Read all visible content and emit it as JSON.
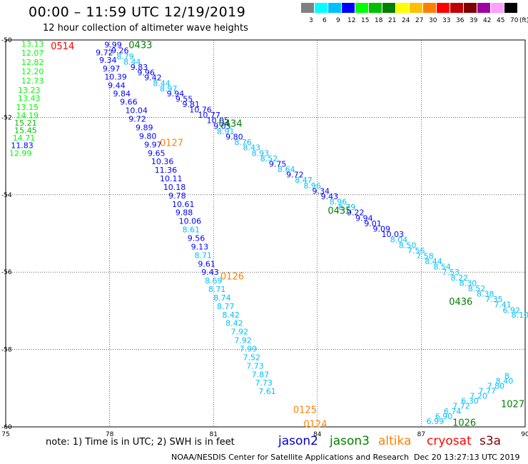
{
  "title": "00:00 – 11:59 UTC 12/19/2019",
  "subtitle": "12 hour collection of altimeter wave heights",
  "color_scale": {
    "labels": [
      "3",
      "6",
      "9",
      "12",
      "15",
      "18",
      "21",
      "24",
      "27",
      "30",
      "33",
      "36",
      "39",
      "42",
      "45",
      "70",
      "(ft)"
    ],
    "colors": [
      "#808080",
      "#00ffff",
      "#00c0ff",
      "#0000ff",
      "#00ff00",
      "#00c000",
      "#008000",
      "#ffff00",
      "#ffc000",
      "#ff8000",
      "#ff0000",
      "#c00000",
      "#800000",
      "#a000a0",
      "#ffa0ff",
      "#000000"
    ]
  },
  "chart_data": {
    "type": "scatter",
    "x_axis": {
      "ticks": [
        "75",
        "78",
        "81",
        "84",
        "87",
        "90"
      ],
      "range": [
        75,
        90
      ]
    },
    "y_axis": {
      "ticks": [
        "-50",
        "-52",
        "-54",
        "-56",
        "-58",
        "-60"
      ],
      "range": [
        -60,
        -50
      ]
    },
    "grid": true,
    "pass_labels": [
      {
        "label": "0514",
        "lon": 76.3,
        "lat": -50.15,
        "color": "#ff0000"
      },
      {
        "label": "0433",
        "lon": 78.55,
        "lat": -50.12,
        "color": "#008000"
      },
      {
        "label": "0434",
        "lon": 81.15,
        "lat": -52.15,
        "color": "#008000"
      },
      {
        "label": "0127",
        "lon": 79.45,
        "lat": -52.65,
        "color": "#ff8000"
      },
      {
        "label": "0435",
        "lon": 84.3,
        "lat": -54.4,
        "color": "#008000"
      },
      {
        "label": "0126",
        "lon": 81.2,
        "lat": -56.1,
        "color": "#ff8000"
      },
      {
        "label": "0436",
        "lon": 87.8,
        "lat": -56.75,
        "color": "#008000"
      },
      {
        "label": "1027",
        "lon": 89.3,
        "lat": -59.4,
        "color": "#008000"
      },
      {
        "label": "0125",
        "lon": 83.3,
        "lat": -59.55,
        "color": "#ff8000"
      },
      {
        "label": "1026",
        "lon": 87.9,
        "lat": -59.88,
        "color": "#008000"
      },
      {
        "label": "0124",
        "lon": 83.6,
        "lat": -59.92,
        "color": "#ff8000"
      }
    ],
    "points": [
      {
        "v": "13.13",
        "lon": 75.45,
        "lat": -50.1,
        "c": "#00ff00"
      },
      {
        "v": "12.07",
        "lon": 75.45,
        "lat": -50.33,
        "c": "#00ff00"
      },
      {
        "v": "12.82",
        "lon": 75.45,
        "lat": -50.57,
        "c": "#00ff00"
      },
      {
        "v": "12.20",
        "lon": 75.45,
        "lat": -50.81,
        "c": "#00ff00"
      },
      {
        "v": "12.73",
        "lon": 75.45,
        "lat": -51.05,
        "c": "#00ff00"
      },
      {
        "v": "13.23",
        "lon": 75.35,
        "lat": -51.29,
        "c": "#00ff00"
      },
      {
        "v": "13.43",
        "lon": 75.35,
        "lat": -51.5,
        "c": "#00ff00"
      },
      {
        "v": "13.15",
        "lon": 75.3,
        "lat": -51.73,
        "c": "#00ff00"
      },
      {
        "v": "14.19",
        "lon": 75.3,
        "lat": -51.95,
        "c": "#00ff00"
      },
      {
        "v": "15.21",
        "lon": 75.25,
        "lat": -52.14,
        "c": "#00c000"
      },
      {
        "v": "15.45",
        "lon": 75.25,
        "lat": -52.33,
        "c": "#00c000"
      },
      {
        "v": "14.71",
        "lon": 75.2,
        "lat": -52.53,
        "c": "#00ff00"
      },
      {
        "v": "11.83",
        "lon": 75.15,
        "lat": -52.72,
        "c": "#0000ff"
      },
      {
        "v": "12.99",
        "lon": 75.1,
        "lat": -52.92,
        "c": "#00ff00"
      },
      {
        "v": "9.99",
        "lon": 77.85,
        "lat": -50.12,
        "c": "#0000ff"
      },
      {
        "v": "9.26",
        "lon": 78.05,
        "lat": -50.27,
        "c": "#0000ff"
      },
      {
        "v": "9.72",
        "lon": 77.6,
        "lat": -50.32,
        "c": "#0000ff"
      },
      {
        "v": "8.79",
        "lon": 78.2,
        "lat": -50.42,
        "c": "#00c0ff"
      },
      {
        "v": "9.34",
        "lon": 77.7,
        "lat": -50.52,
        "c": "#0000ff"
      },
      {
        "v": "8.44",
        "lon": 78.4,
        "lat": -50.56,
        "c": "#00c0ff"
      },
      {
        "v": "9.83",
        "lon": 78.6,
        "lat": -50.7,
        "c": "#0000ff"
      },
      {
        "v": "9.97",
        "lon": 77.8,
        "lat": -50.74,
        "c": "#0000ff"
      },
      {
        "v": "9.96",
        "lon": 78.8,
        "lat": -50.84,
        "c": "#0000ff"
      },
      {
        "v": "10.39",
        "lon": 77.85,
        "lat": -50.95,
        "c": "#0000ff"
      },
      {
        "v": "9.42",
        "lon": 79.0,
        "lat": -50.97,
        "c": "#0000ff"
      },
      {
        "v": "8.44",
        "lon": 79.25,
        "lat": -51.12,
        "c": "#00c0ff"
      },
      {
        "v": "9.44",
        "lon": 77.95,
        "lat": -51.17,
        "c": "#0000ff"
      },
      {
        "v": "8.97",
        "lon": 79.45,
        "lat": -51.25,
        "c": "#00c0ff"
      },
      {
        "v": "9.84",
        "lon": 78.1,
        "lat": -51.38,
        "c": "#0000ff"
      },
      {
        "v": "9.94",
        "lon": 79.65,
        "lat": -51.38,
        "c": "#0000ff"
      },
      {
        "v": "9.55",
        "lon": 79.9,
        "lat": -51.52,
        "c": "#0000ff"
      },
      {
        "v": "9.66",
        "lon": 78.3,
        "lat": -51.6,
        "c": "#0000ff"
      },
      {
        "v": "9.81",
        "lon": 80.1,
        "lat": -51.66,
        "c": "#0000ff"
      },
      {
        "v": "10.76",
        "lon": 80.3,
        "lat": -51.8,
        "c": "#0000ff"
      },
      {
        "v": "10.04",
        "lon": 78.45,
        "lat": -51.82,
        "c": "#0000ff"
      },
      {
        "v": "10.77",
        "lon": 80.55,
        "lat": -51.94,
        "c": "#0000ff"
      },
      {
        "v": "9.72",
        "lon": 78.55,
        "lat": -52.04,
        "c": "#0000ff"
      },
      {
        "v": "10.05",
        "lon": 80.8,
        "lat": -52.08,
        "c": "#0000ff"
      },
      {
        "v": "9.05",
        "lon": 81.0,
        "lat": -52.22,
        "c": "#0000ff"
      },
      {
        "v": "9.89",
        "lon": 78.75,
        "lat": -52.26,
        "c": "#0000ff"
      },
      {
        "v": "8.91",
        "lon": 81.1,
        "lat": -52.36,
        "c": "#00c0ff"
      },
      {
        "v": "9.80",
        "lon": 78.85,
        "lat": -52.48,
        "c": "#0000ff"
      },
      {
        "v": "9.80",
        "lon": 81.35,
        "lat": -52.5,
        "c": "#0000ff"
      },
      {
        "v": "8.76",
        "lon": 81.6,
        "lat": -52.64,
        "c": "#00c0ff"
      },
      {
        "v": "9.97",
        "lon": 79.0,
        "lat": -52.7,
        "c": "#0000ff"
      },
      {
        "v": "8.43",
        "lon": 81.85,
        "lat": -52.78,
        "c": "#00c0ff"
      },
      {
        "v": "9.65",
        "lon": 79.1,
        "lat": -52.92,
        "c": "#0000ff"
      },
      {
        "v": "8.93",
        "lon": 82.1,
        "lat": -52.92,
        "c": "#00c0ff"
      },
      {
        "v": "8.52",
        "lon": 82.35,
        "lat": -53.06,
        "c": "#00c0ff"
      },
      {
        "v": "10.36",
        "lon": 79.2,
        "lat": -53.14,
        "c": "#0000ff"
      },
      {
        "v": "9.75",
        "lon": 82.6,
        "lat": -53.2,
        "c": "#0000ff"
      },
      {
        "v": "8.64",
        "lon": 82.85,
        "lat": -53.34,
        "c": "#00c0ff"
      },
      {
        "v": "11.36",
        "lon": 79.3,
        "lat": -53.36,
        "c": "#0000ff"
      },
      {
        "v": "9.72",
        "lon": 83.1,
        "lat": -53.48,
        "c": "#0000ff"
      },
      {
        "v": "10.11",
        "lon": 79.45,
        "lat": -53.58,
        "c": "#0000ff"
      },
      {
        "v": "8.47",
        "lon": 83.35,
        "lat": -53.62,
        "c": "#00c0ff"
      },
      {
        "v": "8.96",
        "lon": 83.6,
        "lat": -53.76,
        "c": "#00c0ff"
      },
      {
        "v": "10.18",
        "lon": 79.55,
        "lat": -53.8,
        "c": "#0000ff"
      },
      {
        "v": "9.34",
        "lon": 83.85,
        "lat": -53.9,
        "c": "#0000ff"
      },
      {
        "v": "9.78",
        "lon": 79.7,
        "lat": -54.02,
        "c": "#0000ff"
      },
      {
        "v": "9.43",
        "lon": 84.1,
        "lat": -54.04,
        "c": "#0000ff"
      },
      {
        "v": "8.96",
        "lon": 84.35,
        "lat": -54.18,
        "c": "#00c0ff"
      },
      {
        "v": "10.61",
        "lon": 79.8,
        "lat": -54.24,
        "c": "#0000ff"
      },
      {
        "v": "8.79",
        "lon": 84.6,
        "lat": -54.32,
        "c": "#00c0ff"
      },
      {
        "v": "9.22",
        "lon": 84.85,
        "lat": -54.46,
        "c": "#0000ff"
      },
      {
        "v": "9.88",
        "lon": 79.9,
        "lat": -54.46,
        "c": "#0000ff"
      },
      {
        "v": "9.94",
        "lon": 85.1,
        "lat": -54.6,
        "c": "#0000ff"
      },
      {
        "v": "10.06",
        "lon": 80.0,
        "lat": -54.68,
        "c": "#0000ff"
      },
      {
        "v": "9.01",
        "lon": 85.35,
        "lat": -54.74,
        "c": "#0000ff"
      },
      {
        "v": "9.09",
        "lon": 85.6,
        "lat": -54.88,
        "c": "#0000ff"
      },
      {
        "v": "8.61",
        "lon": 80.1,
        "lat": -54.9,
        "c": "#00c0ff"
      },
      {
        "v": "10.03",
        "lon": 85.85,
        "lat": -55.02,
        "c": "#0000ff"
      },
      {
        "v": "9.56",
        "lon": 80.25,
        "lat": -55.12,
        "c": "#0000ff"
      },
      {
        "v": "8.04",
        "lon": 86.1,
        "lat": -55.16,
        "c": "#00c0ff"
      },
      {
        "v": "8.50",
        "lon": 86.35,
        "lat": -55.3,
        "c": "#00c0ff"
      },
      {
        "v": "9.13",
        "lon": 80.35,
        "lat": -55.34,
        "c": "#0000ff"
      },
      {
        "v": "7.56",
        "lon": 86.6,
        "lat": -55.44,
        "c": "#00c0ff"
      },
      {
        "v": "8.71",
        "lon": 80.45,
        "lat": -55.56,
        "c": "#00c0ff"
      },
      {
        "v": "7.58",
        "lon": 86.85,
        "lat": -55.58,
        "c": "#00c0ff"
      },
      {
        "v": "9.61",
        "lon": 80.55,
        "lat": -55.78,
        "c": "#0000ff"
      },
      {
        "v": "8.44",
        "lon": 87.1,
        "lat": -55.72,
        "c": "#00c0ff"
      },
      {
        "v": "8.54",
        "lon": 87.35,
        "lat": -55.86,
        "c": "#00c0ff"
      },
      {
        "v": "9.43",
        "lon": 80.65,
        "lat": -56.0,
        "c": "#0000ff"
      },
      {
        "v": "7.53",
        "lon": 87.6,
        "lat": -56.0,
        "c": "#00c0ff"
      },
      {
        "v": "8.22",
        "lon": 87.85,
        "lat": -56.14,
        "c": "#00c0ff"
      },
      {
        "v": "8.69",
        "lon": 80.75,
        "lat": -56.22,
        "c": "#00c0ff"
      },
      {
        "v": "8.30",
        "lon": 88.1,
        "lat": -56.28,
        "c": "#00c0ff"
      },
      {
        "v": "8.52",
        "lon": 88.35,
        "lat": -56.42,
        "c": "#00c0ff"
      },
      {
        "v": "8.71",
        "lon": 80.85,
        "lat": -56.44,
        "c": "#00c0ff"
      },
      {
        "v": "8.38",
        "lon": 88.6,
        "lat": -56.56,
        "c": "#00c0ff"
      },
      {
        "v": "8.74",
        "lon": 81.0,
        "lat": -56.66,
        "c": "#00c0ff"
      },
      {
        "v": "7.35",
        "lon": 88.85,
        "lat": -56.7,
        "c": "#00c0ff"
      },
      {
        "v": "7.41",
        "lon": 89.1,
        "lat": -56.84,
        "c": "#00c0ff"
      },
      {
        "v": "8.77",
        "lon": 81.1,
        "lat": -56.88,
        "c": "#00c0ff"
      },
      {
        "v": "6.92",
        "lon": 89.35,
        "lat": -56.98,
        "c": "#00c0ff"
      },
      {
        "v": "8.42",
        "lon": 81.25,
        "lat": -57.1,
        "c": "#00c0ff"
      },
      {
        "v": "8.10",
        "lon": 89.6,
        "lat": -57.1,
        "c": "#00c0ff"
      },
      {
        "v": "8.42",
        "lon": 81.35,
        "lat": -57.32,
        "c": "#00c0ff"
      },
      {
        "v": "7.92",
        "lon": 81.5,
        "lat": -57.54,
        "c": "#00c0ff"
      },
      {
        "v": "7.92",
        "lon": 81.6,
        "lat": -57.76,
        "c": "#00c0ff"
      },
      {
        "v": "7.99",
        "lon": 81.75,
        "lat": -57.98,
        "c": "#00c0ff"
      },
      {
        "v": "7.52",
        "lon": 81.85,
        "lat": -58.2,
        "c": "#00c0ff"
      },
      {
        "v": "7.73",
        "lon": 81.95,
        "lat": -58.42,
        "c": "#00c0ff"
      },
      {
        "v": "7.87",
        "lon": 82.1,
        "lat": -58.64,
        "c": "#00c0ff"
      },
      {
        "v": "7.73",
        "lon": 82.2,
        "lat": -58.86,
        "c": "#00c0ff"
      },
      {
        "v": "7.61",
        "lon": 82.3,
        "lat": -59.08,
        "c": "#00c0ff"
      },
      {
        "v": "6.99",
        "lon": 87.15,
        "lat": -59.85,
        "c": "#00c0ff"
      },
      {
        "v": "6.90",
        "lon": 87.4,
        "lat": -59.72,
        "c": "#00c0ff"
      },
      {
        "v": "6.74",
        "lon": 87.65,
        "lat": -59.59,
        "c": "#00c0ff"
      },
      {
        "v": "7.72",
        "lon": 87.9,
        "lat": -59.46,
        "c": "#00c0ff"
      },
      {
        "v": "6.30",
        "lon": 88.15,
        "lat": -59.33,
        "c": "#00c0ff"
      },
      {
        "v": "7.20",
        "lon": 88.4,
        "lat": -59.2,
        "c": "#00c0ff"
      },
      {
        "v": "7.77",
        "lon": 88.65,
        "lat": -59.07,
        "c": "#00c0ff"
      },
      {
        "v": "7.80",
        "lon": 88.9,
        "lat": -58.94,
        "c": "#00c0ff"
      },
      {
        "v": "8.40",
        "lon": 89.15,
        "lat": -58.81,
        "c": "#00c0ff"
      },
      {
        "v": "8.",
        "lon": 89.4,
        "lat": -58.68,
        "c": "#00c0ff"
      }
    ]
  },
  "footer": {
    "note": "note:  1) Time is in UTC;  2) SWH is in feet",
    "satellites": [
      {
        "name": "jason2",
        "color": "#0000cc"
      },
      {
        "name": "jason3",
        "color": "#008000"
      },
      {
        "name": "altika",
        "color": "#ff8000"
      },
      {
        "name": "cryosat",
        "color": "#ff0000"
      },
      {
        "name": "s3a",
        "color": "#800000"
      }
    ],
    "credit": "NOAA/NESDIS Center for Satellite Applications and Research",
    "timestamp": "Dec 20 13:27:13 UTC 2019"
  }
}
